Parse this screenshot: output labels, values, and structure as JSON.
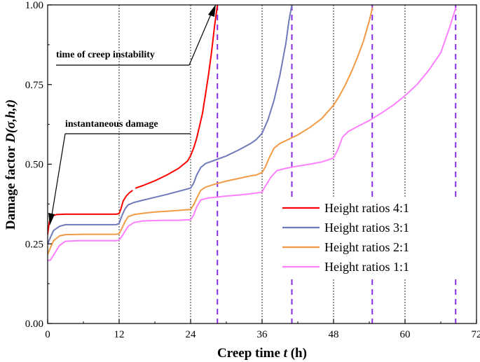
{
  "chart_data": {
    "type": "line",
    "title": "",
    "xlabel": "Creep time ",
    "xlabel_var": "t",
    "xlabel_unit": " (h)",
    "ylabel": "Damage factor ",
    "ylabel_var": "D(σ,h,t)",
    "xlim": [
      0,
      72
    ],
    "ylim": [
      0,
      1.0
    ],
    "x_ticks": [
      0,
      12,
      24,
      36,
      48,
      60,
      72
    ],
    "y_ticks": [
      0.0,
      0.25,
      0.5,
      0.75,
      1.0
    ],
    "x_tick_labels": [
      "0",
      "12",
      "24",
      "36",
      "48",
      "60",
      "72"
    ],
    "y_tick_labels": [
      "0.00",
      "0.25",
      "0.50",
      "0.75",
      "1.00"
    ],
    "stage_lines_x": [
      12,
      24,
      36,
      48,
      60
    ],
    "legend_position": "lower-right",
    "series": [
      {
        "name": "Height ratios 4:1",
        "color": "#ff0000",
        "failure_time": 28.5,
        "points": [
          [
            0,
            0.28
          ],
          [
            0.3,
            0.32
          ],
          [
            0.8,
            0.338
          ],
          [
            1.5,
            0.342
          ],
          [
            3,
            0.343
          ],
          [
            6,
            0.343
          ],
          [
            9,
            0.343
          ],
          [
            11.5,
            0.343
          ],
          [
            12,
            0.345
          ],
          [
            12.3,
            0.36
          ],
          [
            12.7,
            0.385
          ],
          [
            13.2,
            0.4
          ],
          [
            13.7,
            0.41
          ],
          [
            14.2,
            0.417
          ],
          null,
          [
            14.8,
            0.425
          ],
          [
            16,
            0.433
          ],
          [
            18,
            0.448
          ],
          [
            20,
            0.466
          ],
          [
            22,
            0.487
          ],
          [
            23.5,
            0.51
          ],
          [
            24,
            0.527
          ],
          [
            24.5,
            0.55
          ],
          [
            25,
            0.58
          ],
          [
            25.5,
            0.62
          ],
          [
            26,
            0.66
          ],
          [
            26.5,
            0.72
          ],
          [
            27,
            0.78
          ],
          [
            27.5,
            0.85
          ],
          [
            28,
            0.93
          ],
          [
            28.5,
            1.0
          ]
        ]
      },
      {
        "name": "Height ratios 3:1",
        "color": "#6f7aba",
        "failure_time": 41,
        "points": [
          [
            0,
            0.25
          ],
          [
            0.5,
            0.272
          ],
          [
            1,
            0.292
          ],
          [
            2,
            0.305
          ],
          [
            3,
            0.31
          ],
          [
            6,
            0.31
          ],
          [
            9,
            0.31
          ],
          [
            11.5,
            0.31
          ],
          [
            12,
            0.314
          ],
          [
            12.5,
            0.34
          ],
          [
            13,
            0.36
          ],
          [
            13.5,
            0.372
          ],
          [
            14.5,
            0.38
          ],
          [
            16,
            0.387
          ],
          [
            18,
            0.396
          ],
          [
            20,
            0.405
          ],
          [
            22,
            0.415
          ],
          [
            24,
            0.425
          ],
          [
            24.5,
            0.44
          ],
          [
            25,
            0.465
          ],
          [
            25.7,
            0.49
          ],
          [
            26.5,
            0.502
          ],
          [
            28,
            0.512
          ],
          [
            30,
            0.526
          ],
          [
            32,
            0.544
          ],
          [
            34,
            0.564
          ],
          [
            35,
            0.577
          ],
          [
            36,
            0.597
          ],
          [
            37,
            0.64
          ],
          [
            38,
            0.7
          ],
          [
            39,
            0.78
          ],
          [
            40,
            0.88
          ],
          [
            40.5,
            0.95
          ],
          [
            41,
            1.0
          ]
        ]
      },
      {
        "name": "Height ratios 2:1",
        "color": "#f39a45",
        "failure_time": 54.5,
        "points": [
          [
            0,
            0.217
          ],
          [
            0.5,
            0.24
          ],
          [
            1,
            0.26
          ],
          [
            2,
            0.275
          ],
          [
            3,
            0.279
          ],
          [
            6,
            0.28
          ],
          [
            9,
            0.28
          ],
          [
            11.5,
            0.28
          ],
          [
            12,
            0.282
          ],
          [
            12.5,
            0.3
          ],
          [
            13,
            0.32
          ],
          [
            13.5,
            0.335
          ],
          [
            14.5,
            0.342
          ],
          [
            16,
            0.346
          ],
          [
            18,
            0.35
          ],
          [
            20,
            0.352
          ],
          [
            22,
            0.355
          ],
          [
            24,
            0.358
          ],
          [
            24.5,
            0.372
          ],
          [
            25,
            0.392
          ],
          [
            25.7,
            0.418
          ],
          [
            26.5,
            0.428
          ],
          [
            28,
            0.437
          ],
          [
            30,
            0.447
          ],
          [
            32,
            0.455
          ],
          [
            34,
            0.463
          ],
          [
            35,
            0.466
          ],
          [
            36,
            0.474
          ],
          [
            36.5,
            0.49
          ],
          [
            37.2,
            0.52
          ],
          [
            38,
            0.55
          ],
          [
            39,
            0.565
          ],
          [
            40,
            0.574
          ],
          [
            42,
            0.592
          ],
          [
            44,
            0.615
          ],
          [
            46,
            0.643
          ],
          [
            48,
            0.685
          ],
          [
            49,
            0.715
          ],
          [
            50,
            0.75
          ],
          [
            51,
            0.79
          ],
          [
            52,
            0.835
          ],
          [
            53,
            0.885
          ],
          [
            54,
            0.95
          ],
          [
            54.5,
            0.99
          ]
        ]
      },
      {
        "name": "Height ratios 1:1",
        "color": "#ff80ff",
        "failure_time": 68.5,
        "points": [
          [
            0,
            0.197
          ],
          [
            0.5,
            0.2
          ],
          [
            1,
            0.215
          ],
          [
            2,
            0.245
          ],
          [
            3,
            0.258
          ],
          [
            5,
            0.26
          ],
          [
            9,
            0.26
          ],
          [
            11.5,
            0.26
          ],
          [
            12,
            0.262
          ],
          [
            12.5,
            0.275
          ],
          [
            13,
            0.29
          ],
          [
            13.5,
            0.305
          ],
          [
            14.5,
            0.317
          ],
          [
            16,
            0.322
          ],
          [
            18,
            0.323
          ],
          [
            20,
            0.324
          ],
          [
            22,
            0.324
          ],
          [
            24,
            0.326
          ],
          [
            24.5,
            0.34
          ],
          [
            25,
            0.365
          ],
          [
            25.7,
            0.388
          ],
          [
            27,
            0.394
          ],
          [
            30,
            0.4
          ],
          [
            32,
            0.403
          ],
          [
            34,
            0.407
          ],
          [
            36,
            0.412
          ],
          [
            36.5,
            0.43
          ],
          [
            37.5,
            0.46
          ],
          [
            38.5,
            0.48
          ],
          [
            40,
            0.487
          ],
          [
            42,
            0.494
          ],
          [
            44,
            0.5
          ],
          [
            46,
            0.507
          ],
          [
            47,
            0.513
          ],
          [
            48,
            0.52
          ],
          [
            48.7,
            0.545
          ],
          [
            49.5,
            0.585
          ],
          [
            50.5,
            0.603
          ],
          [
            52,
            0.618
          ],
          [
            54,
            0.637
          ],
          [
            56,
            0.66
          ],
          [
            58,
            0.685
          ],
          [
            60,
            0.715
          ],
          [
            62,
            0.75
          ],
          [
            64,
            0.795
          ],
          [
            66,
            0.85
          ],
          [
            67.5,
            0.93
          ],
          [
            68.5,
            0.99
          ]
        ]
      }
    ],
    "annotations": [
      {
        "text": "time of creep instability"
      },
      {
        "text": "instantaneous damage"
      }
    ]
  }
}
